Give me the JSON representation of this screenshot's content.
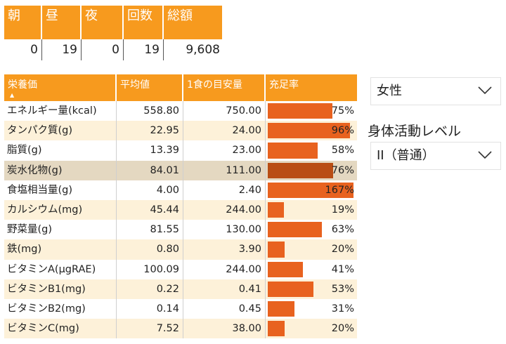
{
  "summary": {
    "headers": [
      "朝",
      "昼",
      "夜",
      "回数",
      "総額"
    ],
    "values": [
      "0",
      "19",
      "0",
      "19",
      "9,608"
    ]
  },
  "nutrients": {
    "headers": [
      "栄養価",
      "平均値",
      "1食の目安量",
      "充足率"
    ],
    "sort_indicator": "▲",
    "rows": [
      {
        "name": "エネルギー量(kcal)",
        "avg": "558.80",
        "target": "750.00",
        "pct": "75%",
        "ratio": 0.75
      },
      {
        "name": "タンパク質(g)",
        "avg": "22.95",
        "target": "24.00",
        "pct": "96%",
        "ratio": 0.96
      },
      {
        "name": "脂質(g)",
        "avg": "13.39",
        "target": "23.00",
        "pct": "58%",
        "ratio": 0.58
      },
      {
        "name": "炭水化物(g)",
        "avg": "84.01",
        "target": "111.00",
        "pct": "76%",
        "ratio": 0.76
      },
      {
        "name": "食塩相当量(g)",
        "avg": "4.00",
        "target": "2.40",
        "pct": "167%",
        "ratio": 1.67
      },
      {
        "name": "カルシウム(mg)",
        "avg": "45.44",
        "target": "244.00",
        "pct": "19%",
        "ratio": 0.19
      },
      {
        "name": "野菜量(g)",
        "avg": "81.55",
        "target": "130.00",
        "pct": "63%",
        "ratio": 0.63
      },
      {
        "name": "鉄(mg)",
        "avg": "0.80",
        "target": "3.90",
        "pct": "20%",
        "ratio": 0.2
      },
      {
        "name": "ビタミンA(μgRAE)",
        "avg": "100.09",
        "target": "244.00",
        "pct": "41%",
        "ratio": 0.41
      },
      {
        "name": "ビタミンB1(mg)",
        "avg": "0.22",
        "target": "0.41",
        "pct": "53%",
        "ratio": 0.53
      },
      {
        "name": "ビタミンB2(mg)",
        "avg": "0.14",
        "target": "0.45",
        "pct": "31%",
        "ratio": 0.31
      },
      {
        "name": "ビタミンC(mg)",
        "avg": "7.52",
        "target": "38.00",
        "pct": "20%",
        "ratio": 0.2
      }
    ]
  },
  "filters": {
    "gender_value": "女性",
    "activity_title": "身体活動レベル",
    "activity_value": "II（普通）"
  },
  "colors": {
    "header": "#f79a1e",
    "bar": "#e8621f",
    "bar_selected": "#b94d14"
  }
}
